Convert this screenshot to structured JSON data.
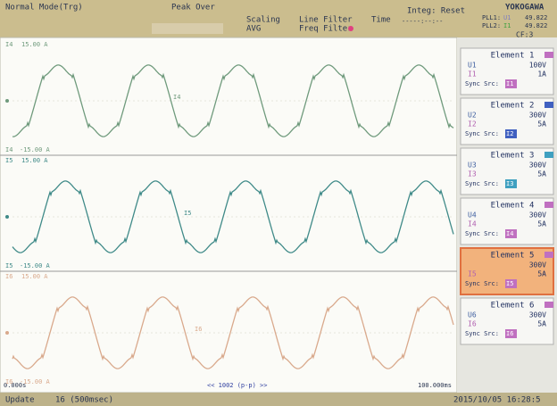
{
  "header": {
    "mode": "Normal Mode(Trg)",
    "peak": "Peak Over",
    "scaling": "Scaling",
    "avg": "AVG",
    "line_filter": "Line Filter",
    "freq_filter": "Freq Filter",
    "time_label": "Time",
    "integ": "Integ: Reset",
    "integ_time": "-----:--:--",
    "brand": "YOKOGAWA",
    "pll1": "PLL1:",
    "pll1_src": "U1",
    "pll1_value": "49.822",
    "pll2": "PLL2:",
    "pll2_src": "I1",
    "pll2_value": "49.822",
    "cf": "CF:3"
  },
  "elements": [
    {
      "title": "Element 1",
      "voltage_name": "U1",
      "voltage_range": "100V",
      "current_name": "I1",
      "current_range": "1A",
      "sync_label": "Sync Src:",
      "sync_src": "I1",
      "color": "#c070c0"
    },
    {
      "title": "Element 2",
      "voltage_name": "U2",
      "voltage_range": "300V",
      "current_name": "I2",
      "current_range": "5A",
      "sync_label": "Sync Src:",
      "sync_src": "I2",
      "color": "#4060c0"
    },
    {
      "title": "Element 3",
      "voltage_name": "U3",
      "voltage_range": "300V",
      "current_name": "I3",
      "current_range": "5A",
      "sync_label": "Sync Src:",
      "sync_src": "I3",
      "color": "#40a0c0"
    },
    {
      "title": "Element 4",
      "voltage_name": "U4",
      "voltage_range": "300V",
      "current_name": "I4",
      "current_range": "5A",
      "sync_label": "Sync Src:",
      "sync_src": "I4",
      "color": "#c070c0"
    },
    {
      "title": "Element 5",
      "voltage_range": "300V",
      "current_name": "I5",
      "current_range": "5A",
      "sync_label": "Sync Src:",
      "sync_src": "I5",
      "color": "#c070c0",
      "selected": true
    },
    {
      "title": "Element 6",
      "voltage_name": "U6",
      "voltage_range": "300V",
      "current_name": "I6",
      "current_range": "5A",
      "sync_label": "Sync Src:",
      "sync_src": "I6",
      "color": "#c070c0"
    }
  ],
  "traces": [
    {
      "name": "I4",
      "upper": "15.00 A",
      "lower": "-15.00 A",
      "color": "#6f9a7c"
    },
    {
      "name": "I5",
      "upper": "15.00 A",
      "lower": "-15.00 A",
      "color": "#3f8a88"
    },
    {
      "name": "I6",
      "upper": "15.00 A",
      "lower": "-15.00 A",
      "color": "#d9a98c"
    }
  ],
  "time_axis": {
    "start": "0.000s",
    "center": "<< 1002 (p-p) >>",
    "end": "100.000ms"
  },
  "status": {
    "update": "Update",
    "count": "16 (500msec)",
    "datetime": "2015/10/05 16:28:5"
  }
}
